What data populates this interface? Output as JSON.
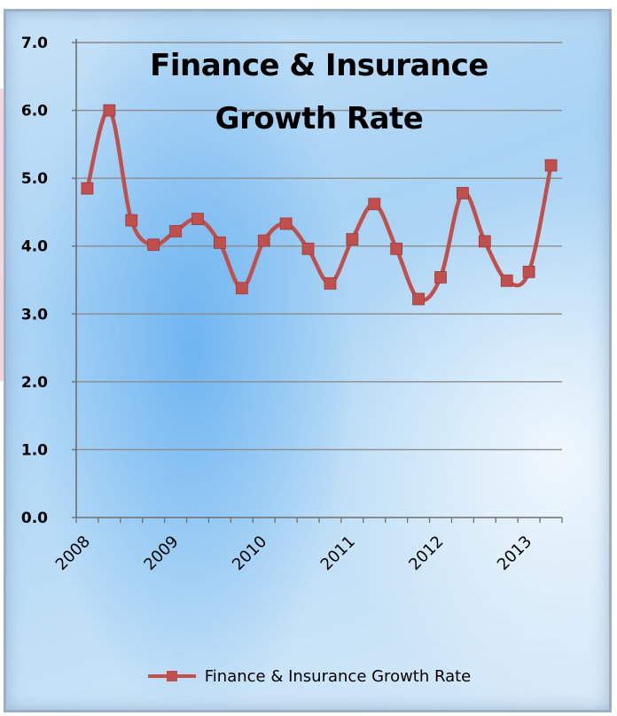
{
  "chart_data": {
    "type": "line",
    "title_lines": [
      "Finance & Insurance",
      "Growth Rate"
    ],
    "series": [
      {
        "name": "Finance & Insurance Growth Rate",
        "color": "#c0504d",
        "values": [
          4.85,
          6.0,
          4.38,
          4.02,
          4.22,
          4.4,
          4.05,
          3.38,
          4.08,
          4.33,
          3.96,
          3.45,
          4.1,
          4.62,
          3.96,
          3.22,
          3.54,
          4.78,
          4.07,
          3.49,
          3.62,
          5.19
        ]
      }
    ],
    "x_tick_labels": [
      "2008",
      "2009",
      "2010",
      "2011",
      "2012",
      "2013"
    ],
    "y_tick_labels": [
      "0.0",
      "1.0",
      "2.0",
      "3.0",
      "4.0",
      "5.0",
      "6.0",
      "7.0"
    ],
    "ylim": [
      0,
      7
    ],
    "grid": true,
    "legend_position": "bottom"
  }
}
